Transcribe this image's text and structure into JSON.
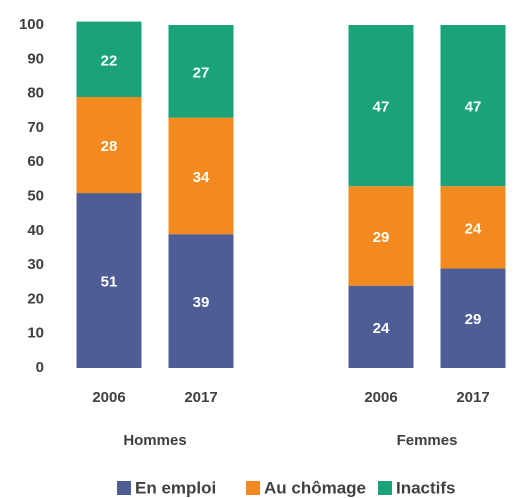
{
  "chart_data": {
    "type": "stacked_bar",
    "categories": [
      "2006",
      "2017",
      "2006",
      "2017"
    ],
    "groups": [
      "Hommes",
      "Femmes"
    ],
    "series": [
      {
        "name": "En emploi",
        "color": "#4f5d95",
        "values": [
          51,
          39,
          24,
          29
        ]
      },
      {
        "name": "Au chômage",
        "color": "#f28a1f",
        "values": [
          28,
          34,
          29,
          24
        ]
      },
      {
        "name": "Inactifs",
        "color": "#1aa37a",
        "values": [
          22,
          27,
          47,
          47
        ]
      }
    ],
    "ylim": [
      0,
      100
    ],
    "yticks": [
      0,
      10,
      20,
      30,
      40,
      50,
      60,
      70,
      80,
      90,
      100
    ],
    "grid": false,
    "legend": "bottom"
  }
}
